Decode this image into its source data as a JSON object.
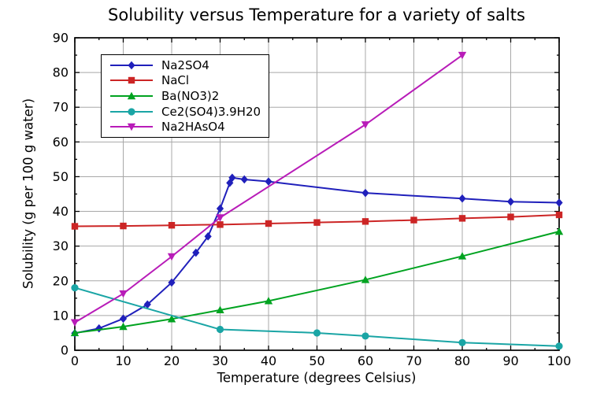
{
  "chart_data": {
    "type": "line",
    "title": "Solubility versus Temperature for a variety of salts",
    "xlabel": "Temperature (degrees Celsius)",
    "ylabel": "Solubility (g per 100 g water)",
    "xlim": [
      0,
      100
    ],
    "ylim": [
      0,
      90
    ],
    "x_ticks": [
      0,
      10,
      20,
      30,
      40,
      50,
      60,
      70,
      80,
      90,
      100
    ],
    "y_ticks": [
      0,
      10,
      20,
      30,
      40,
      50,
      60,
      70,
      80,
      90
    ],
    "grid": true,
    "grid_color": "#a8a8a8",
    "legend_position": "upper-left",
    "series": [
      {
        "name": "Na2SO4",
        "color": "#2020bb",
        "marker": "diamond",
        "points": [
          [
            0,
            4.9
          ],
          [
            5,
            6.3
          ],
          [
            10,
            9.1
          ],
          [
            15,
            13.2
          ],
          [
            20,
            19.5
          ],
          [
            25,
            28.1
          ],
          [
            27.5,
            32.8
          ],
          [
            30,
            40.8
          ],
          [
            32,
            48.2
          ],
          [
            32.5,
            49.7
          ],
          [
            35,
            49.2
          ],
          [
            40,
            48.6
          ],
          [
            60,
            45.3
          ],
          [
            80,
            43.7
          ],
          [
            90,
            42.8
          ],
          [
            100,
            42.5
          ]
        ]
      },
      {
        "name": "NaCl",
        "color": "#cc2525",
        "marker": "square",
        "points": [
          [
            0,
            35.7
          ],
          [
            10,
            35.8
          ],
          [
            20,
            36.0
          ],
          [
            30,
            36.2
          ],
          [
            40,
            36.5
          ],
          [
            50,
            36.8
          ],
          [
            60,
            37.1
          ],
          [
            70,
            37.5
          ],
          [
            80,
            38.0
          ],
          [
            90,
            38.4
          ],
          [
            100,
            39.0
          ]
        ]
      },
      {
        "name": "Ba(NO3)2",
        "color": "#00a320",
        "marker": "triangle-up",
        "points": [
          [
            0,
            5.0
          ],
          [
            10,
            6.8
          ],
          [
            20,
            9.0
          ],
          [
            30,
            11.6
          ],
          [
            40,
            14.2
          ],
          [
            60,
            20.3
          ],
          [
            80,
            27.1
          ],
          [
            100,
            34.2
          ]
        ]
      },
      {
        "name": "Ce2(SO4)3.9H20",
        "color": "#1aa5a5",
        "marker": "circle",
        "points": [
          [
            0,
            18.0
          ],
          [
            30,
            6.0
          ],
          [
            50,
            5.0
          ],
          [
            60,
            4.1
          ],
          [
            80,
            2.2
          ],
          [
            100,
            1.2
          ]
        ]
      },
      {
        "name": "Na2HAsO4",
        "color": "#b81cb8",
        "marker": "triangle-down",
        "points": [
          [
            0,
            8.0
          ],
          [
            10,
            16.3
          ],
          [
            20,
            27.0
          ],
          [
            30,
            38.2
          ],
          [
            60,
            65.0
          ],
          [
            80,
            85.0
          ]
        ]
      }
    ]
  }
}
